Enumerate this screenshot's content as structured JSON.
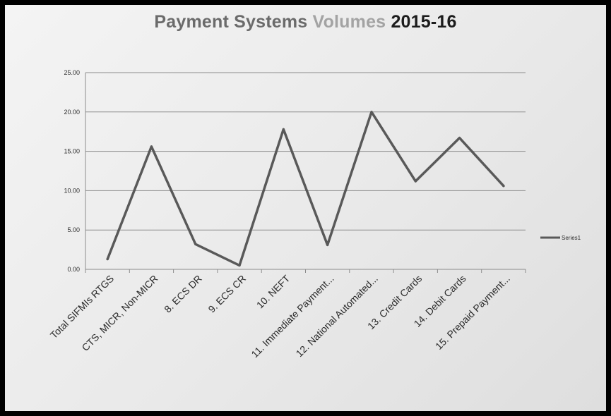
{
  "chart_data": {
    "type": "line",
    "title_parts": [
      "Payment Systems",
      "Volumes",
      "2015-16"
    ],
    "title_colors": [
      "#6b6b6b",
      "#a3a3a3",
      "#1c1c1c"
    ],
    "categories": [
      "Total SIFMIs RTGS",
      "CTS, MICR, Non-MICR",
      "8. ECS DR",
      "9. ECS CR",
      "10. NEFT",
      "11. Immediate Payment...",
      "12. National Automated...",
      "13. Credit Cards",
      "14. Debit Cards",
      "15. Prepaid Payment..."
    ],
    "series": [
      {
        "name": "Series1",
        "color": "#595959",
        "values": [
          1.3,
          15.6,
          3.2,
          0.5,
          17.8,
          3.1,
          20.0,
          11.2,
          16.7,
          10.6
        ]
      }
    ],
    "ylim": [
      0,
      25
    ],
    "yticks": [
      "0.00",
      "5.00",
      "10.00",
      "15.00",
      "20.00",
      "25.00"
    ],
    "grid": true,
    "legend": "right",
    "colors": {
      "grid": "#8c8c8c",
      "axis": "#8c8c8c"
    }
  }
}
